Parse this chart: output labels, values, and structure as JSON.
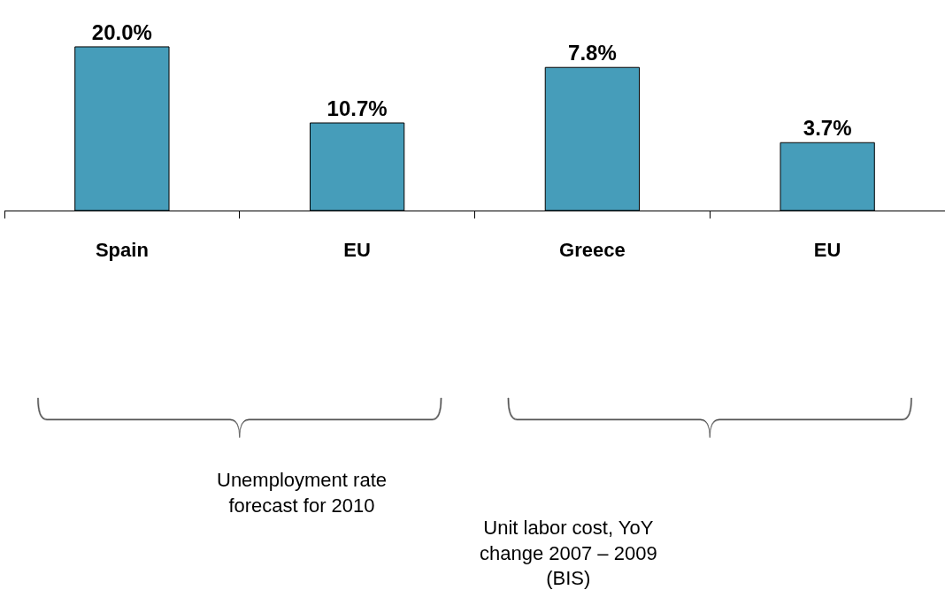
{
  "chart_data": [
    {
      "type": "bar",
      "categories": [
        "Spain",
        "EU"
      ],
      "values": [
        20.0,
        10.7
      ],
      "value_labels": [
        "20.0%",
        "10.7%"
      ],
      "color": "#469dba",
      "tick_labels": "x",
      "annotations": [
        "Unemployment rate\nforecast for 2010"
      ]
    },
    {
      "type": "bar",
      "categories": [
        "Greece",
        "EU"
      ],
      "values": [
        7.8,
        3.7
      ],
      "value_labels": [
        "7.8%",
        "3.7%"
      ],
      "color": "#469dba",
      "tick_labels": "x",
      "annotations": [
        "Unit labor cost, YoY\nchange 2007 – 2009\n(BIS)"
      ]
    }
  ]
}
